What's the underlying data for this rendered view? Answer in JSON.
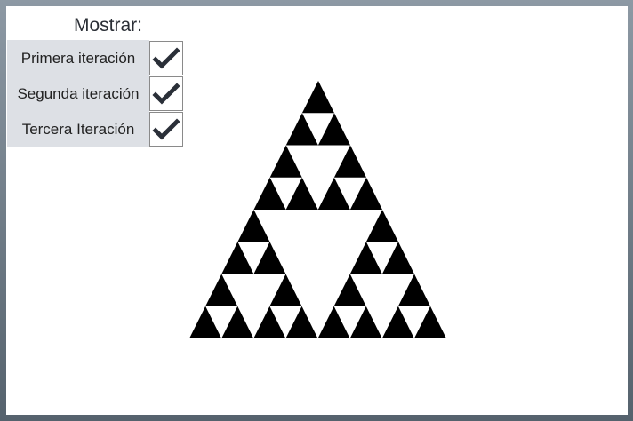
{
  "panel": {
    "title": "Mostrar:",
    "options": [
      {
        "label": "Primera iteración",
        "checked": true
      },
      {
        "label": "Segunda iteración",
        "checked": true
      },
      {
        "label": "Tercera Iteración",
        "checked": true
      }
    ]
  },
  "fractal": {
    "color": "#000000",
    "iterations": 3
  }
}
